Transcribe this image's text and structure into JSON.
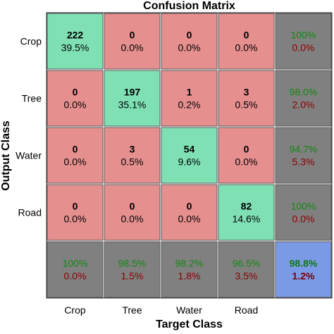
{
  "chart_data": {
    "type": "heatmap",
    "title": "Confusion Matrix",
    "xlabel": "Target Class",
    "ylabel": "Output Class",
    "classes": [
      "Crop",
      "Tree",
      "Water",
      "Road"
    ],
    "matrix": [
      [
        222,
        0,
        0,
        0
      ],
      [
        0,
        197,
        1,
        3
      ],
      [
        0,
        3,
        54,
        0
      ],
      [
        0,
        0,
        0,
        82
      ]
    ],
    "percent_matrix": [
      [
        "39.5%",
        "0.0%",
        "0.0%",
        "0.0%"
      ],
      [
        "0.0%",
        "35.1%",
        "0.2%",
        "0.5%"
      ],
      [
        "0.0%",
        "0.5%",
        "9.6%",
        "0.0%"
      ],
      [
        "0.0%",
        "0.0%",
        "0.0%",
        "14.6%"
      ]
    ],
    "row_summary": [
      {
        "correct": "100%",
        "error": "0.0%"
      },
      {
        "correct": "98.0%",
        "error": "2.0%"
      },
      {
        "correct": "94.7%",
        "error": "5.3%"
      },
      {
        "correct": "100%",
        "error": "0.0%"
      }
    ],
    "col_summary": [
      {
        "correct": "100%",
        "error": "0.0%"
      },
      {
        "correct": "98.5%",
        "error": "1.5%"
      },
      {
        "correct": "98.2%",
        "error": "1.8%"
      },
      {
        "correct": "96.5%",
        "error": "3.5%"
      }
    ],
    "overall": {
      "correct": "98.8%",
      "error": "1.2%"
    },
    "colors": {
      "diagonal": "#7fe0b4",
      "off_diagonal": "#e58f8f",
      "summary": "#808080",
      "overall": "#7b9ae6",
      "correct_text": "#118811",
      "error_text": "#8b0000",
      "overall_correct_text": "#117711",
      "overall_error_text": "#7a0000"
    }
  }
}
